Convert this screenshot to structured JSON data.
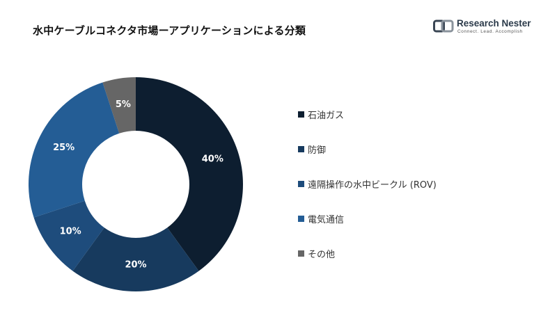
{
  "header": {
    "title": "水中ケーブルコネクタ市場ーアプリケーションによる分類"
  },
  "logo": {
    "name": "Research Nester",
    "tagline": "Connect. Lead. Accomplish"
  },
  "colors": {
    "background": "#ffffff",
    "slice_1": "#0d1e30",
    "slice_2": "#173a5e",
    "slice_3": "#1e4c7c",
    "slice_4": "#245d95",
    "slice_5": "#666666"
  },
  "chart_data": {
    "type": "pie",
    "donut": true,
    "categories": [
      "石油ガス",
      "防御",
      "遠隔操作の水中ビークル (ROV)",
      "電気通信",
      "その他"
    ],
    "values": [
      40,
      20,
      10,
      25,
      5
    ],
    "data_labels": [
      "40%",
      "20%",
      "10%",
      "25%",
      "5%"
    ],
    "colors": [
      "#0d1e30",
      "#173a5e",
      "#1e4c7c",
      "#245d95",
      "#666666"
    ],
    "legend_order": [
      0,
      1,
      2,
      3,
      4
    ],
    "legend_position": "right"
  }
}
